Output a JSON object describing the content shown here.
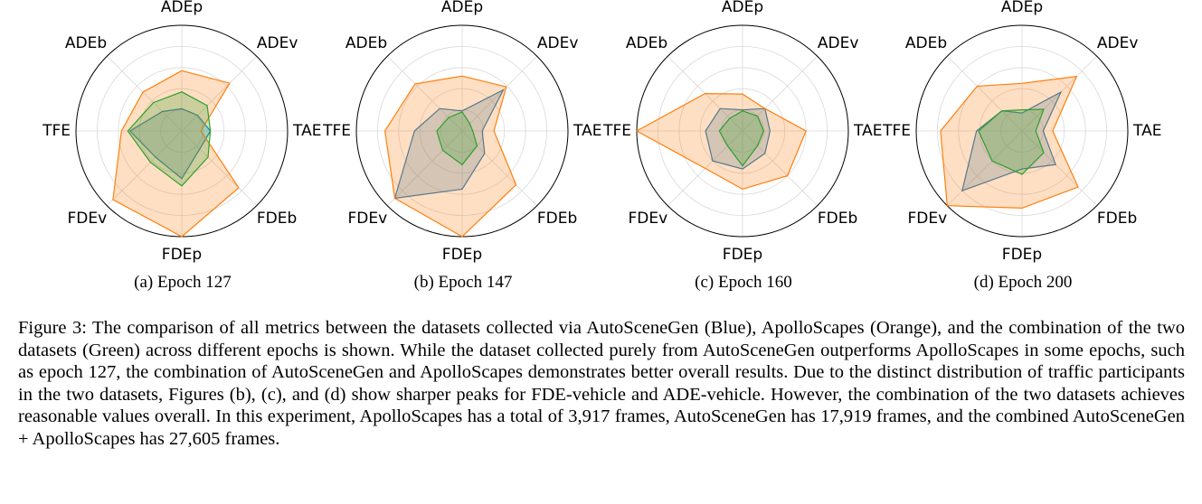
{
  "chart_data": [
    {
      "type": "radar",
      "subcaption": "(a) Epoch 127",
      "axes": [
        "ADEp",
        "ADEv",
        "TAE",
        "FDEb",
        "FDEp",
        "FDEv",
        "TFE",
        "ADEb"
      ],
      "rmax": 1.0,
      "series": [
        {
          "color": "#1f77b4",
          "values": [
            0.21,
            0.21,
            0.27,
            0.24,
            0.45,
            0.35,
            0.49,
            0.26
          ]
        },
        {
          "color": "#ff7f0e",
          "values": [
            0.57,
            0.64,
            0.18,
            0.76,
            1.0,
            0.92,
            0.57,
            0.52
          ]
        },
        {
          "color": "#2ca02c",
          "values": [
            0.37,
            0.34,
            0.27,
            0.35,
            0.52,
            0.42,
            0.51,
            0.38
          ]
        }
      ]
    },
    {
      "type": "radar",
      "subcaption": "(b) Epoch 147",
      "axes": [
        "ADEp",
        "ADEv",
        "TAE",
        "FDEb",
        "FDEp",
        "FDEv",
        "TFE",
        "ADEb"
      ],
      "rmax": 1.0,
      "series": [
        {
          "color": "#1f77b4",
          "values": [
            0.19,
            0.55,
            0.19,
            0.3,
            0.55,
            0.9,
            0.45,
            0.3
          ]
        },
        {
          "color": "#ff7f0e",
          "values": [
            0.52,
            0.59,
            0.3,
            0.72,
            1.0,
            0.9,
            0.73,
            0.63
          ]
        },
        {
          "color": "#2ca02c",
          "values": [
            0.18,
            0.1,
            0.1,
            0.2,
            0.32,
            0.26,
            0.24,
            0.18
          ]
        }
      ]
    },
    {
      "type": "radar",
      "subcaption": "(c) Epoch 160",
      "axes": [
        "ADEp",
        "ADEv",
        "TAE",
        "FDEb",
        "FDEp",
        "FDEv",
        "TFE",
        "ADEb"
      ],
      "rmax": 1.0,
      "series": [
        {
          "color": "#1f77b4",
          "values": [
            0.2,
            0.3,
            0.26,
            0.3,
            0.36,
            0.4,
            0.35,
            0.3
          ]
        },
        {
          "color": "#ff7f0e",
          "values": [
            0.35,
            0.3,
            0.6,
            0.6,
            0.55,
            0.5,
            1.0,
            0.5
          ]
        },
        {
          "color": "#2ca02c",
          "values": [
            0.19,
            0.2,
            0.2,
            0.2,
            0.33,
            0.2,
            0.22,
            0.17
          ]
        }
      ]
    },
    {
      "type": "radar",
      "subcaption": "(d) Epoch 200",
      "axes": [
        "ADEp",
        "ADEv",
        "TAE",
        "FDEb",
        "FDEp",
        "FDEv",
        "TFE",
        "ADEb"
      ],
      "rmax": 1.0,
      "series": [
        {
          "color": "#1f77b4",
          "values": [
            0.17,
            0.52,
            0.2,
            0.45,
            0.36,
            0.8,
            0.43,
            0.27
          ]
        },
        {
          "color": "#ff7f0e",
          "values": [
            0.45,
            0.73,
            0.29,
            0.75,
            0.73,
            1.0,
            0.77,
            0.6
          ]
        },
        {
          "color": "#2ca02c",
          "values": [
            0.2,
            0.29,
            0.13,
            0.29,
            0.41,
            0.4,
            0.41,
            0.27
          ]
        }
      ]
    }
  ],
  "caption": "Figure 3: The comparison of all metrics between the datasets collected via AutoSceneGen (Blue), ApolloScapes (Orange), and the combination of the two datasets (Green) across different epochs is shown. While the dataset collected purely from AutoSceneGen outperforms ApolloScapes in some epochs, such as epoch 127, the combination of AutoSceneGen and ApolloScapes demonstrates better overall results. Due to the distinct distribution of traffic participants in the two datasets, Figures (b), (c), and (d) show sharper peaks for FDE-vehicle and ADE-vehicle. However, the combination of the two datasets achieves reasonable values overall. In this experiment, ApolloScapes has a total of 3,917 frames, AutoSceneGen has 17,919 frames, and the combined AutoSceneGen + ApolloScapes has 27,605 frames."
}
